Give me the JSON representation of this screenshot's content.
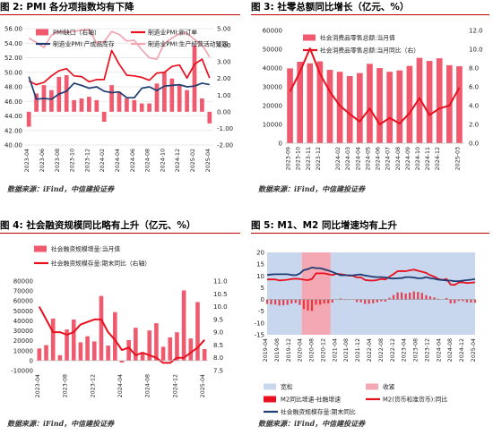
{
  "chart_data": [
    {
      "type": "bar+line",
      "title": "图 2:  PMI 各分项指数均有下降",
      "source": "数据来源：iFind，中信建投证券",
      "categories": [
        "2023-04",
        "2023-05",
        "2023-06",
        "2023-07",
        "2023-08",
        "2023-09",
        "2023-10",
        "2023-11",
        "2023-12",
        "2024-01",
        "2024-02",
        "2024-03",
        "2024-04",
        "2024-05",
        "2024-06",
        "2024-07",
        "2024-08",
        "2024-09",
        "2024-10",
        "2024-11",
        "2024-12",
        "2025-01",
        "2025-02",
        "2025-03",
        "2025-04"
      ],
      "x_tick_labels": [
        "2023-04",
        "2023-06",
        "2023-08",
        "2023-10",
        "2023-12",
        "2024-02",
        "2024-04",
        "2024-06",
        "2024-08",
        "2024-10",
        "2024-12",
        "2025-02",
        "2025-04"
      ],
      "left_axis": {
        "min": 40,
        "max": 56,
        "ticks": [
          "40.00",
          "42.00",
          "44.00",
          "46.00",
          "48.00",
          "50.00",
          "52.00",
          "54.00",
          "56.00"
        ]
      },
      "right_axis": {
        "min": -2,
        "max": 5,
        "ticks": [
          "-2.00",
          "-1.00",
          "0.00",
          "1.00",
          "2.00",
          "3.00",
          "4.00",
          "5.00"
        ]
      },
      "legend": [
        {
          "name": "PMI缺口（右轴）",
          "kind": "bar",
          "color": "#f05a6e"
        },
        {
          "name": "制造业PMI:新订单",
          "kind": "line",
          "color": "#e8101e"
        },
        {
          "name": "制造业PMI:产成品库存",
          "kind": "line",
          "color": "#1f3c73"
        },
        {
          "name": "制造业PMI:生产经营活动预期",
          "kind": "line",
          "color": "#f2a4b0"
        }
      ],
      "series": [
        {
          "name": "PMI缺口（右轴）",
          "axis": "right",
          "type": "bar",
          "color": "#f05a6e",
          "values": [
            -0.9,
            1.1,
            1.6,
            1.3,
            2.1,
            2.2,
            0.7,
            0.8,
            0.9,
            0.7,
            -0.6,
            1.6,
            1.2,
            0.8,
            0.7,
            0.5,
            0.5,
            1.7,
            2.4,
            2.0,
            1.6,
            1.3,
            4.0,
            0.8,
            -0.7
          ]
        },
        {
          "name": "制造业PMI:新订单",
          "axis": "left",
          "type": "line",
          "color": "#e8101e",
          "values": [
            48.8,
            48.3,
            48.6,
            49.5,
            50.2,
            50.5,
            49.5,
            49.4,
            48.7,
            49.0,
            49.0,
            53.0,
            51.1,
            49.6,
            49.5,
            49.3,
            48.9,
            49.9,
            50.0,
            50.8,
            51.0,
            49.2,
            51.1,
            51.8,
            49.2
          ]
        },
        {
          "name": "制造业PMI:产成品库存",
          "axis": "left",
          "type": "line",
          "color": "#1f3c73",
          "values": [
            49.4,
            46.3,
            46.4,
            46.3,
            47.0,
            47.4,
            48.5,
            48.2,
            47.8,
            48.0,
            47.4,
            47.2,
            47.3,
            46.5,
            46.5,
            47.8,
            48.0,
            47.5,
            48.1,
            48.2,
            48.3,
            48.0,
            48.1,
            48.5,
            48.3
          ]
        },
        {
          "name": "制造业PMI:生产经营活动预期",
          "axis": "left",
          "type": "line",
          "color": "#f2a4b0",
          "values": [
            54.7,
            54.1,
            53.4,
            55.1,
            55.6,
            55.5,
            55.6,
            55.8,
            55.9,
            54.0,
            54.2,
            55.6,
            55.2,
            54.3,
            54.4,
            53.1,
            52.0,
            51.8,
            54.0,
            54.7,
            55.3,
            55.4,
            54.5,
            53.8,
            52.1
          ]
        }
      ]
    },
    {
      "type": "bar+line",
      "title": "图 3:  社零总额同比增长（亿元、%）",
      "source": "数据来源：iFind，中信建投证券",
      "categories": [
        "2023-09",
        "2023-10",
        "2023-11",
        "2023-12",
        "2024-01",
        "2024-02",
        "2024-03",
        "2024-04",
        "2024-05",
        "2024-06",
        "2024-07",
        "2024-08",
        "2024-09",
        "2024-10",
        "2024-11",
        "2024-12",
        "2025-01",
        "2025-03"
      ],
      "x_tick_labels": [
        "2023-09",
        "2023-10",
        "2023-11",
        "2023-12",
        "2024-02",
        "2024-03",
        "2024-04",
        "2024-05",
        "2024-06",
        "2024-07",
        "2024-08",
        "2024-09",
        "2024-10",
        "2024-11",
        "2024-12",
        "2025-03"
      ],
      "left_axis": {
        "min": 0,
        "max": 60000,
        "ticks": [
          "0",
          "10000",
          "20000",
          "30000",
          "40000",
          "50000",
          "60000"
        ]
      },
      "right_axis": {
        "min": 0,
        "max": 12.0,
        "ticks": [
          "0.0",
          "2.0",
          "4.0",
          "6.0",
          "8.0",
          "10.0",
          "12.0"
        ]
      },
      "legend": [
        {
          "name": "社会消费品零售总额:当月值",
          "kind": "bar",
          "color": "#f05a6e"
        },
        {
          "name": "社会消费品零售总额:当月同比（右）",
          "kind": "line",
          "color": "#e8101e"
        }
      ],
      "series": [
        {
          "name": "社会消费品零售总额:当月值",
          "axis": "left",
          "type": "bar",
          "color": "#f05a6e",
          "values": [
            39826,
            43333,
            42505,
            43550,
            39020,
            38000,
            35699,
            37328,
            42240,
            39962,
            38019,
            38726,
            41112,
            45396,
            43763,
            45172,
            41500,
            40940
          ]
        },
        {
          "name": "社会消费品零售总额:当月同比（右）",
          "axis": "right",
          "type": "line",
          "color": "#e8101e",
          "values": [
            5.5,
            7.6,
            10.1,
            7.4,
            5.5,
            4.0,
            3.1,
            2.3,
            3.7,
            2.0,
            2.7,
            2.1,
            3.2,
            4.8,
            3.0,
            3.7,
            4.0,
            5.9
          ]
        }
      ]
    },
    {
      "type": "bar+line",
      "title": "图 4:  社会融资规模同比略有上升（亿元、%）",
      "source": "数据来源：iFind，中信建投证券",
      "categories": [
        "2023-04",
        "2023-05",
        "2023-06",
        "2023-07",
        "2023-08",
        "2023-09",
        "2023-10",
        "2023-11",
        "2023-12",
        "2024-01",
        "2024-02",
        "2024-03",
        "2024-04",
        "2024-05",
        "2024-06",
        "2024-07",
        "2024-08",
        "2024-09",
        "2024-10",
        "2024-11",
        "2024-12",
        "2025-01",
        "2025-02",
        "2025-03",
        "2025-04"
      ],
      "x_tick_labels": [
        "2023-04",
        "2023-08",
        "2023-12",
        "2024-04",
        "2024-08",
        "2024-12",
        "2025-04"
      ],
      "left_axis": {
        "min": -10000,
        "max": 80000,
        "ticks": [
          "-10000",
          "0",
          "10000",
          "20000",
          "30000",
          "40000",
          "50000",
          "60000",
          "70000",
          "80000"
        ]
      },
      "right_axis": {
        "min": 7.5,
        "max": 11.0,
        "ticks": [
          "7.5",
          "8.0",
          "8.5",
          "9.0",
          "9.5",
          "10.0",
          "10.5",
          "11.0"
        ]
      },
      "legend": [
        {
          "name": "社会融资规模增量:当月值",
          "kind": "bar",
          "color": "#f05a6e"
        },
        {
          "name": "社会融资规模存量:期末同比（右轴）",
          "kind": "line",
          "color": "#e8101e"
        }
      ],
      "series": [
        {
          "name": "社会融资规模增量:当月值",
          "axis": "left",
          "type": "bar",
          "color": "#f05a6e",
          "values": [
            12200,
            15600,
            42200,
            5400,
            31300,
            41300,
            18400,
            24500,
            19300,
            65000,
            15100,
            48700,
            -1990,
            20600,
            33000,
            7700,
            30300,
            37600,
            13900,
            23400,
            28500,
            70600,
            22300,
            58900,
            11600
          ]
        },
        {
          "name": "社会融资规模存量:期末同比（右轴）",
          "axis": "right",
          "type": "line",
          "color": "#e8101e",
          "values": [
            10.0,
            9.5,
            9.0,
            9.0,
            8.9,
            9.0,
            9.3,
            9.4,
            9.5,
            9.5,
            9.0,
            8.7,
            8.3,
            8.4,
            8.1,
            8.2,
            8.1,
            8.0,
            7.8,
            7.8,
            8.0,
            8.0,
            8.2,
            8.4,
            8.7
          ]
        }
      ]
    },
    {
      "type": "area+line",
      "title": "图 5:  M1、M2 同比增速均有上升",
      "source": "数据来源：iFind，中信建投证券",
      "x_tick_labels": [
        "2019-04",
        "2019-08",
        "2019-12",
        "2020-04",
        "2020-08",
        "2020-12",
        "2021-04",
        "2021-08",
        "2021-12",
        "2022-04",
        "2022-08",
        "2022-12",
        "2023-04",
        "2023-08",
        "2023-12",
        "2024-04",
        "2024-08",
        "2024-12",
        "2025-04"
      ],
      "left_axis": {
        "min": -15,
        "max": 20,
        "ticks": [
          "-15",
          "-10",
          "-5",
          "0",
          "5",
          "10",
          "15",
          "20"
        ]
      },
      "regions": [
        {
          "name": "宽松",
          "start": "2019-04",
          "end": "2020-04",
          "color": "#c8d6ee"
        },
        {
          "name": "收紧",
          "start": "2020-04",
          "end": "2021-02",
          "color": "#f4a8b3"
        },
        {
          "name": "宽松",
          "start": "2021-02",
          "end": "2025-04",
          "color": "#c8d6ee"
        }
      ],
      "legend": [
        {
          "name": "宽松",
          "kind": "box",
          "color": "#c8d6ee"
        },
        {
          "name": "收紧",
          "kind": "box",
          "color": "#f4a8b3"
        },
        {
          "name": "M2同比增速-社融增速",
          "kind": "box",
          "color": "#e8101e"
        },
        {
          "name": "M2(货币和准货币):同比",
          "kind": "line",
          "color": "#e8101e"
        },
        {
          "name": "社会融资规模存量:期末同比",
          "kind": "line",
          "color": "#1f3c73"
        }
      ],
      "series": [
        {
          "name": "M2(货币和准货币):同比",
          "type": "line",
          "color": "#e8101e",
          "values": [
            8.5,
            8.5,
            8.5,
            8.1,
            8.2,
            8.4,
            8.7,
            8.8,
            8.7,
            8.4,
            8.2,
            8.7,
            11.1,
            11.1,
            11.1,
            10.7,
            10.4,
            10.9,
            10.7,
            10.5,
            10.1,
            10.1,
            9.4,
            9.4,
            8.3,
            8.1,
            8.0,
            8.3,
            8.7,
            8.5,
            9.7,
            10.8,
            12.0,
            12.1,
            12.0,
            12.4,
            12.7,
            12.2,
            11.8,
            11.3,
            10.3,
            9.7,
            8.7,
            8.3,
            8.7,
            6.3,
            6.2,
            7.2,
            7.3,
            7.0,
            7.1,
            7.3
          ]
        },
        {
          "name": "社会融资规模存量:期末同比",
          "type": "line",
          "color": "#1f3c73",
          "values": [
            10.4,
            10.6,
            10.7,
            10.7,
            10.7,
            10.7,
            10.4,
            10.3,
            11.0,
            12.5,
            12.9,
            13.6,
            13.3,
            13.3,
            12.8,
            12.3,
            11.7,
            11.0,
            10.3,
            10.3,
            10.3,
            10.2,
            10.5,
            10.6,
            10.2,
            9.9,
            9.6,
            9.5,
            9.5,
            9.4,
            9.0,
            8.9,
            9.0,
            9.1,
            9.5,
            9.5,
            9.3,
            9.0,
            9.0,
            9.5,
            9.0,
            8.8,
            8.4,
            8.3,
            8.1,
            8.0,
            7.8,
            7.8,
            8.0,
            8.2,
            8.4,
            8.7
          ]
        },
        {
          "name": "M2同比增速-社融增速",
          "type": "area",
          "color": "#e8101e",
          "values": [
            -1.9,
            -2.1,
            -2.2,
            -2.6,
            -2.5,
            -2.3,
            -1.7,
            -1.5,
            -2.3,
            -4.1,
            -4.7,
            -4.9,
            -2.2,
            -2.2,
            -1.7,
            -1.6,
            -1.3,
            -0.1,
            0.4,
            0.2,
            -0.2,
            -0.1,
            -1.1,
            -1.2,
            -1.9,
            -1.8,
            -1.6,
            -1.2,
            -0.8,
            -0.9,
            0.7,
            1.9,
            3.0,
            3.0,
            2.5,
            2.9,
            3.4,
            3.2,
            2.8,
            1.8,
            1.3,
            0.9,
            0.3,
            0.0,
            0.6,
            -1.7,
            -1.6,
            -0.6,
            -0.7,
            -1.2,
            -1.3,
            -1.4
          ]
        }
      ]
    }
  ]
}
